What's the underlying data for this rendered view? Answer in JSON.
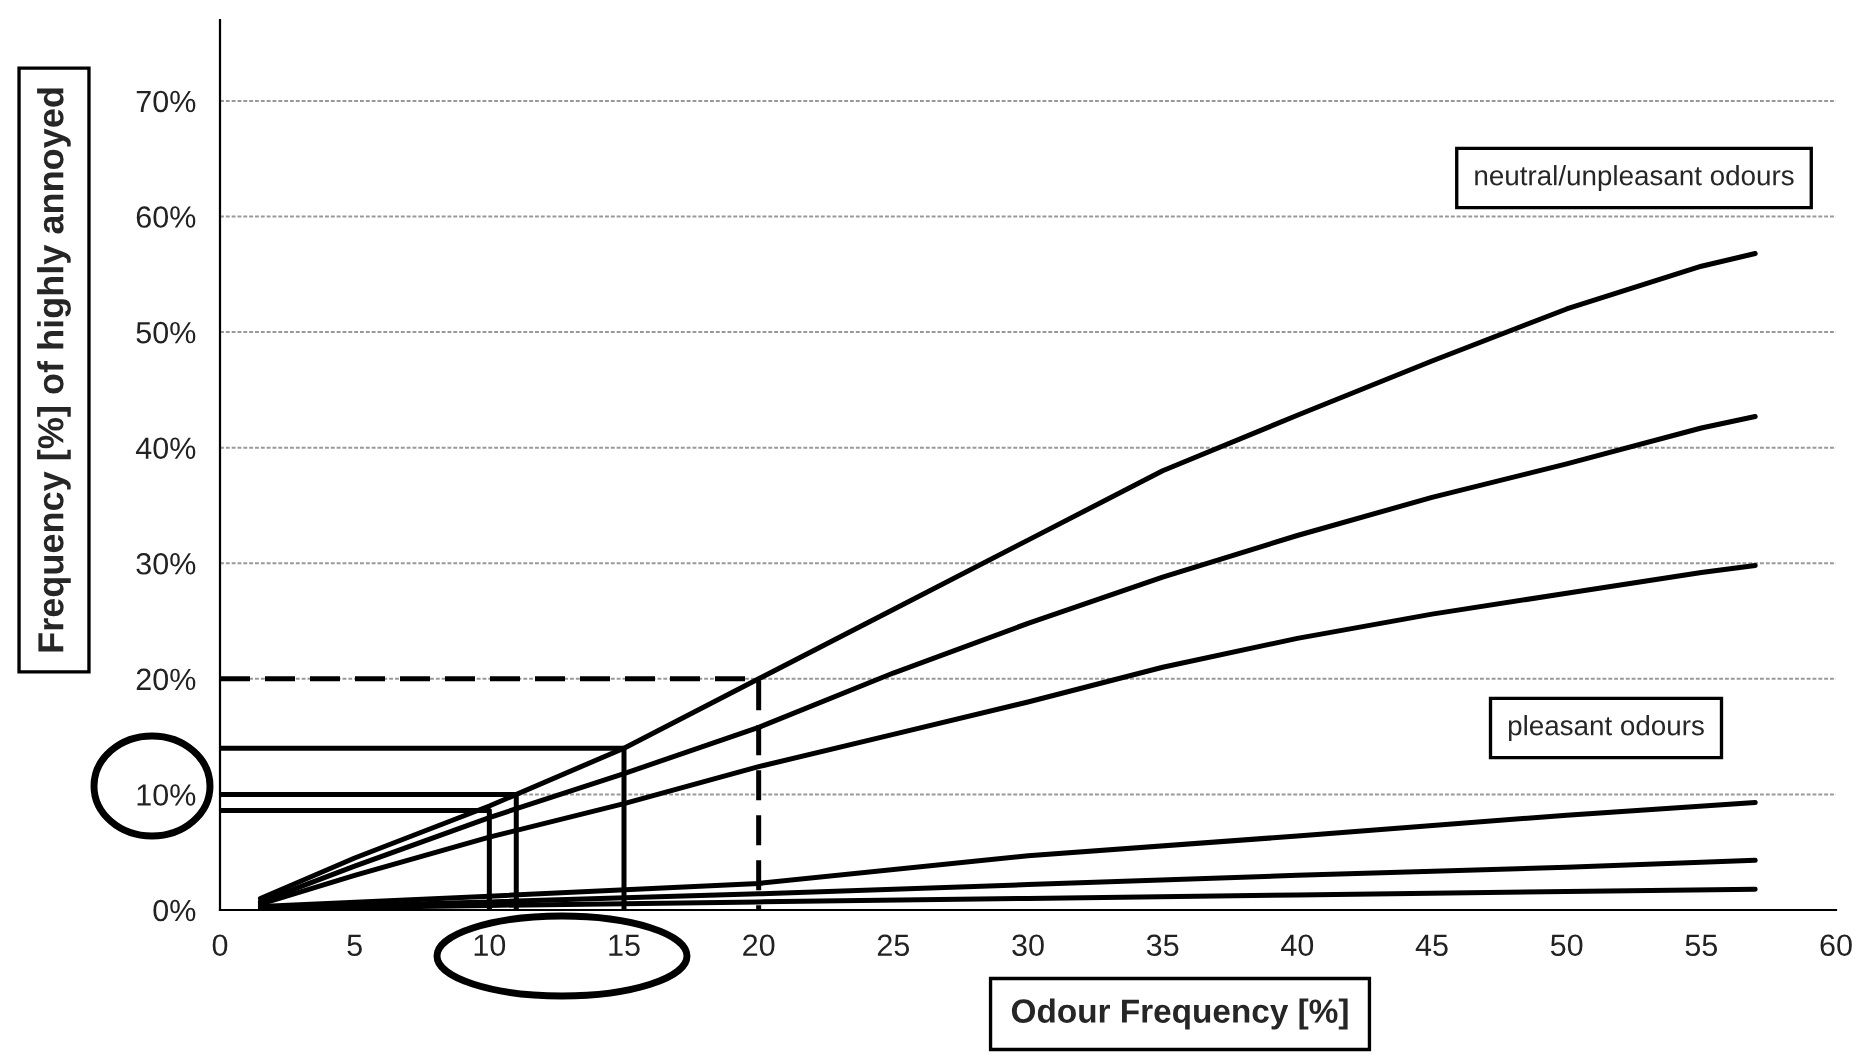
{
  "chart_data": {
    "type": "line",
    "xlabel": "Odour Frequency [%]",
    "ylabel": "Frequency [%] of highly annoyed",
    "xlim": [
      0,
      60
    ],
    "xticks": [
      0,
      5,
      10,
      15,
      20,
      25,
      30,
      35,
      40,
      45,
      50,
      55,
      60
    ],
    "ylim": [
      0,
      77
    ],
    "yticks": [
      {
        "value": 0,
        "label": "0%"
      },
      {
        "value": 10,
        "label": "10%"
      },
      {
        "value": 20,
        "label": "20%"
      },
      {
        "value": 30,
        "label": "30%"
      },
      {
        "value": 40,
        "label": "40%"
      },
      {
        "value": 50,
        "label": "50%"
      },
      {
        "value": 60,
        "label": "60%"
      },
      {
        "value": 70,
        "label": "70%"
      }
    ],
    "grid": "y",
    "legend": false,
    "marker": "none",
    "series": [
      {
        "color": "#000000",
        "line_style": "solid",
        "x": [
          1.5,
          5,
          10,
          15,
          20,
          25,
          30,
          35,
          40,
          45,
          50,
          55,
          57
        ],
        "values": [
          1,
          4.5,
          9,
          14,
          20,
          26,
          32,
          38,
          42.8,
          47.5,
          52,
          55.7,
          56.8
        ]
      },
      {
        "color": "#000000",
        "line_style": "solid",
        "x": [
          1.5,
          5,
          10,
          15,
          20,
          25,
          30,
          35,
          40,
          45,
          50,
          55,
          57
        ],
        "values": [
          0.7,
          3.8,
          8,
          11.8,
          15.8,
          20.5,
          24.8,
          28.8,
          32.4,
          35.7,
          38.6,
          41.7,
          42.7
        ]
      },
      {
        "color": "#000000",
        "line_style": "solid",
        "x": [
          1.5,
          5,
          10,
          15,
          20,
          25,
          30,
          35,
          40,
          45,
          50,
          55,
          57
        ],
        "values": [
          0.5,
          3,
          6.3,
          9.2,
          12.4,
          15.2,
          18,
          21,
          23.5,
          25.6,
          27.4,
          29.2,
          29.8
        ]
      },
      {
        "color": "#000000",
        "line_style": "solid",
        "x": [
          1.5,
          10,
          20,
          30,
          40,
          50,
          57
        ],
        "values": [
          0.3,
          1.2,
          2.3,
          4.7,
          6.4,
          8.2,
          9.3
        ]
      },
      {
        "color": "#000000",
        "line_style": "solid",
        "x": [
          1.5,
          10,
          20,
          30,
          40,
          50,
          57
        ],
        "values": [
          0.2,
          0.7,
          1.4,
          2.2,
          3,
          3.7,
          4.3
        ]
      },
      {
        "color": "#000000",
        "line_style": "solid",
        "x": [
          1.5,
          10,
          20,
          30,
          40,
          50,
          57
        ],
        "values": [
          0.1,
          0.4,
          0.7,
          1,
          1.3,
          1.6,
          1.8
        ]
      },
      {
        "color": "#000000",
        "line_style": "dashed",
        "x": [
          0,
          20,
          20
        ],
        "values": [
          20,
          20,
          0
        ]
      },
      {
        "color": "#000000",
        "line_style": "solid",
        "x": [
          0,
          15,
          15
        ],
        "values": [
          14,
          14,
          0
        ]
      },
      {
        "color": "#000000",
        "line_style": "solid",
        "x": [
          0,
          11,
          11
        ],
        "values": [
          10,
          10,
          0
        ]
      },
      {
        "color": "#000000",
        "line_style": "solid",
        "x": [
          0,
          10,
          10
        ],
        "values": [
          8.6,
          8.6,
          0
        ]
      }
    ],
    "annotations": [
      "neutral/unpleasant odours",
      "pleasant odours"
    ]
  }
}
